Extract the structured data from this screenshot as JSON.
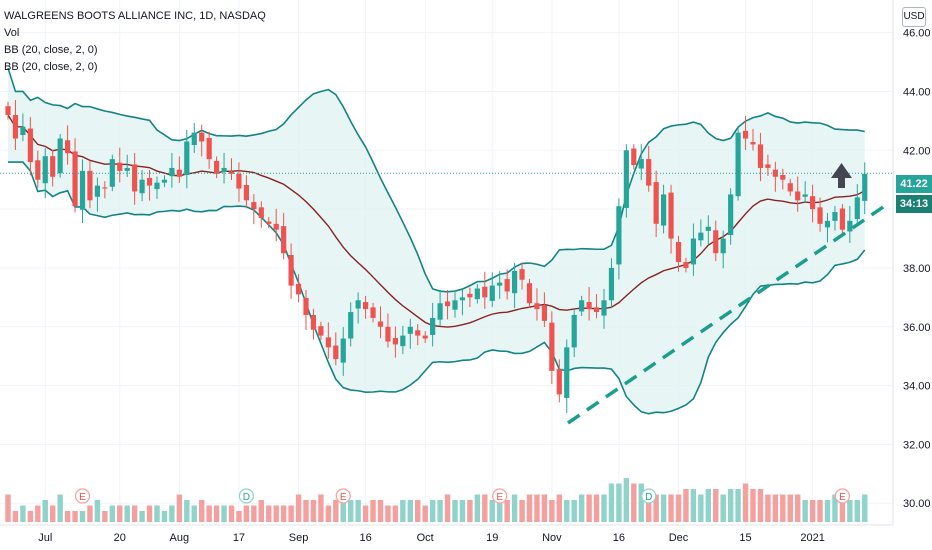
{
  "header": {
    "symbol_line": "WALGREENS BOOTS ALLIANCE INC, 1D, NASDAQ",
    "indicators": [
      "Vol",
      "BB (20, close, 2, 0)",
      "BB (20, close, 2, 0)"
    ],
    "currency": "USD"
  },
  "price_tags": {
    "last_price": "41.22",
    "countdown": "34:13"
  },
  "colors": {
    "up": "#26a69a",
    "down": "#ef5350",
    "band": "#138484",
    "band_fill": "#e0f2f1",
    "basis": "#872323",
    "vol_up": "#8fd3cb",
    "vol_down": "#f4a09e",
    "last_price_bg": "#26a69a",
    "countdown_bg": "#1b7f73",
    "trendline": "#1b9e8e",
    "arrow": "#434651"
  },
  "chart_data": {
    "type": "candlestick",
    "title": "WALGREENS BOOTS ALLIANCE INC, 1D, NASDAQ",
    "y_axis": {
      "ticks": [
        30,
        32,
        34,
        36,
        38,
        40,
        42,
        44,
        46
      ],
      "tick_labels": [
        "30.00",
        "32.00",
        "34.00",
        "36.00",
        "38.00",
        "40.00",
        "42.00",
        "44.00",
        "46.00"
      ],
      "ylim": [
        29.6,
        46.6
      ]
    },
    "x_axis": {
      "tick_labels": [
        "Jul",
        "20",
        "Aug",
        "17",
        "Sep",
        "16",
        "Oct",
        "19",
        "Nov",
        "16",
        "Dec",
        "15",
        "2021"
      ],
      "tick_bar_index": [
        5,
        15,
        23,
        31,
        39,
        48,
        56,
        65,
        73,
        82,
        90,
        99,
        108
      ]
    },
    "last_price": 41.22,
    "series": [
      {
        "name": "Close",
        "values": [
          43.2,
          42.4,
          42.8,
          41.6,
          41.0,
          41.8,
          41.1,
          42.4,
          41.9,
          40.1,
          41.3,
          40.3,
          40.8,
          40.7,
          41.7,
          41.3,
          41.4,
          40.6,
          41.0,
          40.8,
          40.9,
          41.0,
          41.4,
          41.1,
          42.3,
          42.6,
          42.3,
          41.7,
          41.2,
          41.4,
          41.2,
          40.7,
          40.3,
          40.0,
          39.7,
          39.5,
          39.3,
          38.5,
          37.4,
          37.1,
          36.4,
          35.9,
          35.7,
          35.3,
          34.9,
          35.6,
          36.5,
          36.9,
          36.6,
          36.3,
          36.0,
          35.5,
          35.4,
          35.7,
          36.0,
          35.7,
          35.6,
          36.3,
          36.8,
          36.7,
          36.9,
          37.0,
          37.0,
          37.3,
          37.0,
          37.4,
          37.5,
          37.2,
          37.9,
          37.6,
          36.8,
          36.6,
          36.2,
          34.5,
          33.7,
          35.3,
          36.4,
          36.9,
          36.6,
          36.5,
          36.9,
          38.0,
          40.1,
          42.0,
          41.5,
          41.7,
          40.8,
          39.5,
          40.5,
          39.0,
          38.2,
          38.0,
          39.0,
          39.2,
          39.4,
          38.5,
          39.0,
          40.5,
          42.6,
          42.4,
          42.2,
          41.4,
          41.4,
          41.1,
          41.0,
          40.6,
          40.3,
          40.5,
          40.0,
          39.5,
          39.6,
          39.9,
          39.3,
          39.6,
          40.4,
          41.2
        ]
      },
      {
        "name": "Volume",
        "values": [
          12,
          9,
          10,
          9,
          10,
          11,
          10,
          12,
          9,
          9,
          9,
          10,
          11,
          9,
          10,
          10,
          10,
          10,
          9,
          10,
          10,
          9,
          10,
          12,
          11,
          10,
          11,
          10,
          10,
          10,
          10,
          9,
          10,
          10,
          11,
          10,
          10,
          10,
          10,
          12,
          11,
          11,
          12,
          10,
          11,
          11,
          11,
          11,
          10,
          11,
          11,
          10,
          10,
          11,
          11,
          11,
          10,
          11,
          11,
          12,
          11,
          11,
          11,
          12,
          12,
          11,
          12,
          11,
          12,
          11,
          12,
          12,
          12,
          11,
          12,
          11,
          11,
          12,
          12,
          12,
          12,
          14,
          14,
          15,
          14,
          14,
          13,
          12,
          12,
          12,
          12,
          13,
          13,
          12,
          13,
          13,
          12,
          13,
          13,
          14,
          13,
          13,
          12,
          12,
          12,
          12,
          12,
          11,
          11,
          11,
          11,
          12,
          12,
          11,
          11,
          12
        ]
      }
    ],
    "annotations": {
      "earnings_markers": [
        "E",
        "E",
        "D",
        "E",
        "D",
        "E"
      ]
    }
  }
}
